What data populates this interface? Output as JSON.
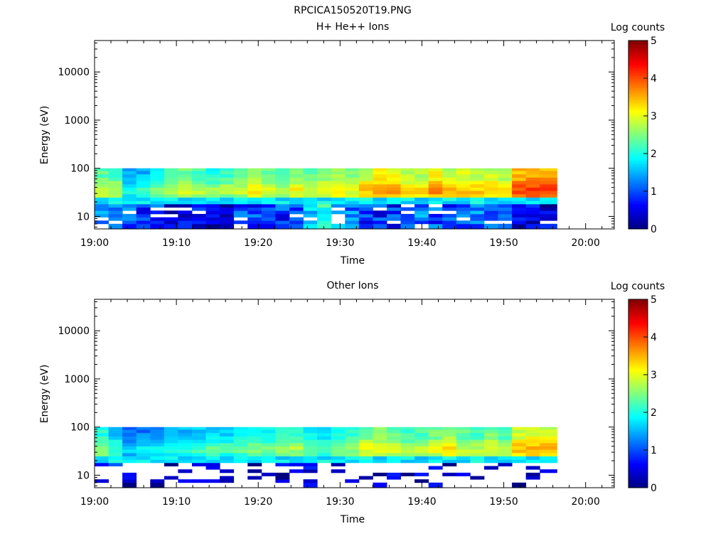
{
  "figure_title": "RPCICA150520T19.PNG",
  "chart_data": [
    {
      "type": "heatmap",
      "title": "H+ He++ Ions",
      "xlabel": "Time",
      "ylabel": "Energy (eV)",
      "x_ticks": [
        "19:00",
        "19:10",
        "19:20",
        "19:30",
        "19:40",
        "19:50",
        "20:00"
      ],
      "xlim_minutes": [
        0,
        63.5
      ],
      "y_scale": "log",
      "ylim": [
        5.5,
        45000
      ],
      "y_ticks": [
        "10",
        "100",
        "1000",
        "10000"
      ],
      "colorbar": {
        "label": "Log counts",
        "ticks": [
          "0",
          "1",
          "2",
          "3",
          "4",
          "5"
        ],
        "range": [
          0,
          5
        ]
      },
      "energy_rows": [
        6.5,
        7.6,
        8.9,
        10.4,
        12.2,
        14.3,
        16.8,
        19.5,
        23,
        27,
        31.7,
        37.1,
        43.5,
        51,
        59.8,
        70.1,
        82.2,
        96.4
      ],
      "time_range_minutes": [
        0,
        56.5
      ],
      "time_bins_minutes": [
        0,
        1.7,
        3.4,
        5.1,
        6.8,
        8.5,
        10.2,
        11.9,
        13.6,
        15.3,
        17.0,
        18.7,
        20.4,
        22.1,
        23.8,
        25.5,
        27.2,
        28.9,
        30.6,
        32.3,
        34.0,
        35.7,
        37.4,
        39.1,
        40.8,
        42.5,
        44.2,
        45.9,
        47.6,
        49.3,
        51.0,
        52.7,
        54.4
      ],
      "high_band_level": [
        2.8,
        2.7,
        1.9,
        2.0,
        2.4,
        2.6,
        2.9,
        2.7,
        2.5,
        2.6,
        2.8,
        3.1,
        2.9,
        2.6,
        3.0,
        2.8,
        3.0,
        3.1,
        2.9,
        3.3,
        3.6,
        3.5,
        3.2,
        3.2,
        3.6,
        3.3,
        3.4,
        3.3,
        3.3,
        3.2,
        3.9,
        4.0,
        4.0
      ],
      "low_band_level": [
        1.2,
        1.0,
        1.1,
        0.9,
        0.9,
        0.6,
        0.5,
        0.5,
        0.4,
        0.5,
        0.9,
        0.9,
        0.9,
        0.9,
        0.9,
        1.6,
        2.0,
        1.6,
        1.2,
        0.9,
        0.8,
        0.8,
        1.2,
        1.2,
        1.0,
        1.0,
        1.1,
        1.2,
        1.2,
        0.9,
        0.6,
        0.6,
        0.5
      ],
      "low_band_gap_fraction": 0.12
    },
    {
      "type": "heatmap",
      "title": "Other Ions",
      "xlabel": "Time",
      "ylabel": "Energy (eV)",
      "x_ticks": [
        "19:00",
        "19:10",
        "19:20",
        "19:30",
        "19:40",
        "19:50",
        "20:00"
      ],
      "xlim_minutes": [
        0,
        63.5
      ],
      "y_scale": "log",
      "ylim": [
        5.5,
        45000
      ],
      "y_ticks": [
        "10",
        "100",
        "1000",
        "10000"
      ],
      "colorbar": {
        "label": "Log counts",
        "ticks": [
          "0",
          "1",
          "2",
          "3",
          "4",
          "5"
        ],
        "range": [
          0,
          5
        ]
      },
      "energy_rows": [
        6.5,
        7.6,
        8.9,
        10.4,
        12.2,
        14.3,
        16.8,
        19.5,
        23,
        27,
        31.7,
        37.1,
        43.5,
        51,
        59.8,
        70.1,
        82.2,
        96.4
      ],
      "time_range_minutes": [
        0,
        56.5
      ],
      "time_bins_minutes": [
        0,
        1.7,
        3.4,
        5.1,
        6.8,
        8.5,
        10.2,
        11.9,
        13.6,
        15.3,
        17.0,
        18.7,
        20.4,
        22.1,
        23.8,
        25.5,
        27.2,
        28.9,
        30.6,
        32.3,
        34.0,
        35.7,
        37.4,
        39.1,
        40.8,
        42.5,
        44.2,
        45.9,
        47.6,
        49.3,
        51.0,
        52.7,
        54.4
      ],
      "high_band_level": [
        2.5,
        2.1,
        1.6,
        1.7,
        1.8,
        1.9,
        2.0,
        2.1,
        2.2,
        2.1,
        2.3,
        2.4,
        2.4,
        2.5,
        2.6,
        2.3,
        2.2,
        2.4,
        2.5,
        2.9,
        3.0,
        2.8,
        2.6,
        2.7,
        2.9,
        3.1,
        2.8,
        2.7,
        2.9,
        2.7,
        3.3,
        3.4,
        3.4
      ],
      "low_band_level": [
        0.6,
        0.6,
        0.4,
        0.4,
        0.4,
        0.3,
        0.3,
        0.3,
        0.3,
        0.3,
        0.3,
        0.3,
        0.3,
        0.3,
        0.3,
        0.5,
        0.6,
        0.5,
        0.4,
        0.3,
        0.3,
        0.3,
        0.3,
        0.3,
        0.3,
        0.3,
        0.3,
        0.3,
        0.3,
        0.3,
        0.3,
        0.3,
        0.3
      ],
      "low_band_gap_fraction": 0.75
    }
  ]
}
